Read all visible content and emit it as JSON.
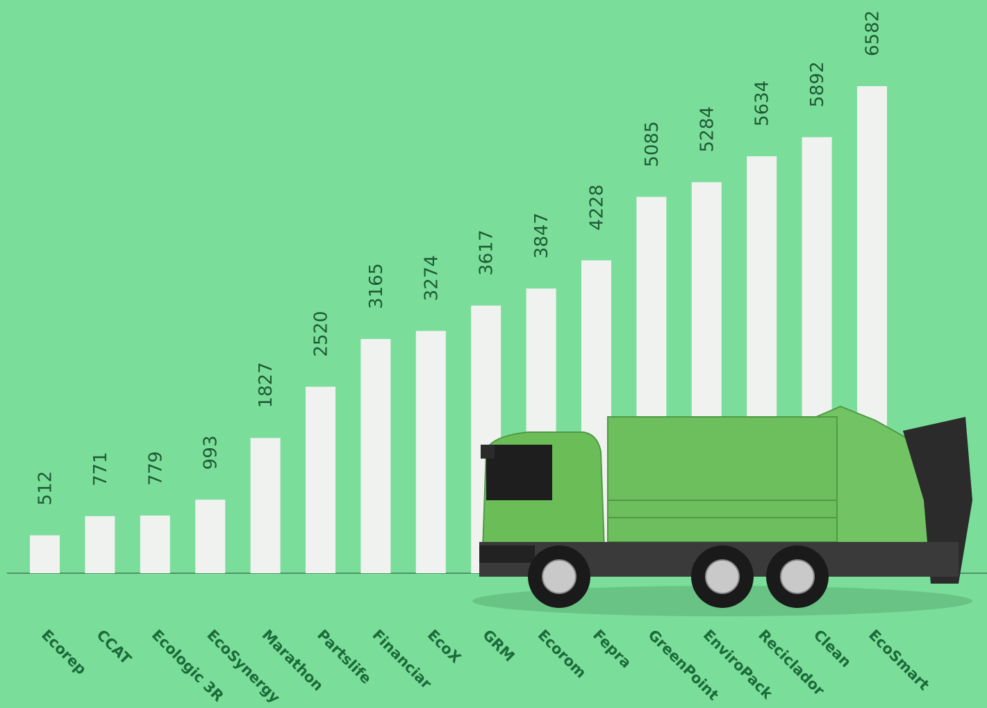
{
  "chart_data": {
    "type": "bar",
    "categories": [
      "Ecorep",
      "CCAT",
      "Ecologic 3R",
      "EcoSynergy",
      "Marathon",
      "Partslife",
      "Financiar",
      "EcoX",
      "GRM",
      "Ecorom",
      "Fepra",
      "GreenPoint",
      "EnviroPack",
      "Reciclador",
      "Clean",
      "EcoSmart"
    ],
    "values": [
      512,
      771,
      779,
      993,
      1827,
      2520,
      3165,
      3274,
      3617,
      3847,
      4228,
      5085,
      5284,
      5634,
      5892,
      6582
    ],
    "color": "#f0f2f0"
  }
}
